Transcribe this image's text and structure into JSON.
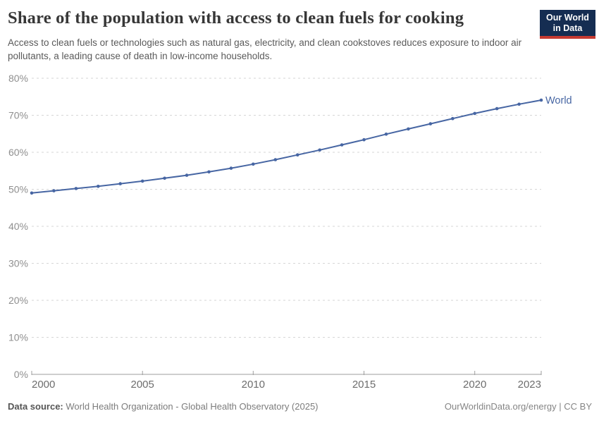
{
  "header": {
    "title": "Share of the population with access to clean fuels for cooking",
    "subtitle": "Access to clean fuels or technologies such as natural gas, electricity, and clean cookstoves reduces exposure to indoor air pollutants, a leading cause of death in low-income households."
  },
  "logo": {
    "line1": "Our World",
    "line2": "in Data",
    "background_color": "#152d52",
    "accent_color": "#c63a31"
  },
  "chart_data": {
    "type": "line",
    "title": "Share of the population with access to clean fuels for cooking",
    "xlabel": "",
    "ylabel": "",
    "grid": "horizontal-dashed",
    "legend_position": "end-of-line-label",
    "x": [
      2000,
      2001,
      2002,
      2003,
      2004,
      2005,
      2006,
      2007,
      2008,
      2009,
      2010,
      2011,
      2012,
      2013,
      2014,
      2015,
      2016,
      2017,
      2018,
      2019,
      2020,
      2021,
      2022,
      2023
    ],
    "series": [
      {
        "name": "World",
        "color": "#4766a3",
        "values": [
          49.0,
          49.6,
          50.2,
          50.8,
          51.5,
          52.2,
          53.0,
          53.8,
          54.7,
          55.7,
          56.8,
          58.0,
          59.3,
          60.6,
          62.0,
          63.4,
          64.9,
          66.3,
          67.7,
          69.1,
          70.5,
          71.8,
          73.0,
          74.1
        ]
      }
    ],
    "ylim": [
      0,
      80
    ],
    "yticks": [
      0,
      10,
      20,
      30,
      40,
      50,
      60,
      70,
      80
    ],
    "ytick_labels": [
      "0%",
      "10%",
      "20%",
      "30%",
      "40%",
      "50%",
      "60%",
      "70%",
      "80%"
    ],
    "xticks": [
      2000,
      2005,
      2010,
      2015,
      2020,
      2023
    ],
    "xtick_labels": [
      "2000",
      "2005",
      "2010",
      "2015",
      "2020",
      "2023"
    ],
    "colors": {
      "gridline": "#d6d6d6",
      "axis": "#9e9e9e",
      "y_tick_label": "#8f8f8f",
      "x_tick_label": "#6d6d6d"
    }
  },
  "footer": {
    "source_label": "Data source:",
    "source_text": " World Health Organization - Global Health Observatory (2025)",
    "link": "OurWorldinData.org/energy",
    "separator": " | ",
    "license": "CC BY"
  }
}
